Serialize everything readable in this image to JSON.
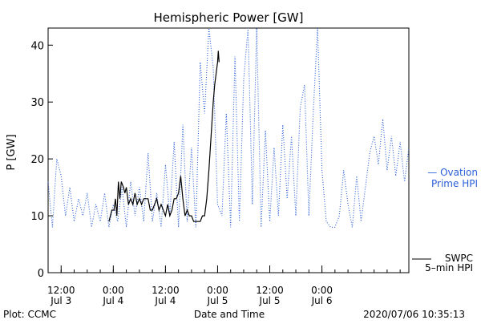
{
  "chart_data": {
    "type": "line",
    "title": "Hemispheric Power [GW]",
    "ylabel": "P [GW]",
    "xlabel": "Date and Time",
    "ylim": [
      0,
      43
    ],
    "xlim": [
      "2020-07-03T09:00",
      "2020-07-06T20:00"
    ],
    "y_ticks": [
      0,
      10,
      20,
      30,
      40
    ],
    "x_ticks": [
      {
        "time": "2020-07-03T12:00",
        "label_time": "12:00",
        "label_date": "Jul 3"
      },
      {
        "time": "2020-07-04T00:00",
        "label_time": "0:00",
        "label_date": "Jul 4"
      },
      {
        "time": "2020-07-04T12:00",
        "label_time": "12:00",
        "label_date": "Jul 4"
      },
      {
        "time": "2020-07-05T00:00",
        "label_time": "0:00",
        "label_date": "Jul 5"
      },
      {
        "time": "2020-07-05T12:00",
        "label_time": "12:00",
        "label_date": "Jul 5"
      },
      {
        "time": "2020-07-06T00:00",
        "label_time": "0:00",
        "label_date": "Jul 6"
      }
    ],
    "grid": false,
    "series": [
      {
        "name": "Ovation Prime HPI",
        "color": "#2b5fd9",
        "style": "dotted",
        "points": [
          [
            "2020-07-03T09:00",
            16
          ],
          [
            "2020-07-03T10:00",
            8
          ],
          [
            "2020-07-03T11:00",
            20
          ],
          [
            "2020-07-03T12:00",
            17
          ],
          [
            "2020-07-03T13:00",
            10
          ],
          [
            "2020-07-03T14:00",
            15
          ],
          [
            "2020-07-03T15:00",
            9
          ],
          [
            "2020-07-03T16:00",
            13
          ],
          [
            "2020-07-03T17:00",
            10
          ],
          [
            "2020-07-03T18:00",
            14
          ],
          [
            "2020-07-03T19:00",
            8
          ],
          [
            "2020-07-03T20:00",
            12
          ],
          [
            "2020-07-03T21:00",
            9
          ],
          [
            "2020-07-03T22:00",
            14
          ],
          [
            "2020-07-03T23:00",
            8
          ],
          [
            "2020-07-04T00:00",
            12
          ],
          [
            "2020-07-04T01:00",
            9
          ],
          [
            "2020-07-04T02:00",
            15
          ],
          [
            "2020-07-04T03:00",
            8
          ],
          [
            "2020-07-04T04:00",
            16
          ],
          [
            "2020-07-04T05:00",
            10
          ],
          [
            "2020-07-04T06:00",
            15
          ],
          [
            "2020-07-04T07:00",
            9
          ],
          [
            "2020-07-04T08:00",
            21
          ],
          [
            "2020-07-04T09:00",
            9
          ],
          [
            "2020-07-04T10:00",
            14
          ],
          [
            "2020-07-04T11:00",
            8
          ],
          [
            "2020-07-04T12:00",
            19
          ],
          [
            "2020-07-04T13:00",
            10
          ],
          [
            "2020-07-04T14:00",
            23
          ],
          [
            "2020-07-04T15:00",
            8
          ],
          [
            "2020-07-04T16:00",
            26
          ],
          [
            "2020-07-04T17:00",
            9
          ],
          [
            "2020-07-04T18:00",
            22
          ],
          [
            "2020-07-04T19:00",
            8
          ],
          [
            "2020-07-04T20:00",
            37
          ],
          [
            "2020-07-04T21:00",
            28
          ],
          [
            "2020-07-04T22:00",
            43
          ],
          [
            "2020-07-04T23:00",
            36
          ],
          [
            "2020-07-05T00:00",
            12
          ],
          [
            "2020-07-05T01:00",
            10
          ],
          [
            "2020-07-05T02:00",
            28
          ],
          [
            "2020-07-05T03:00",
            8
          ],
          [
            "2020-07-05T04:00",
            38
          ],
          [
            "2020-07-05T05:00",
            9
          ],
          [
            "2020-07-05T06:00",
            34
          ],
          [
            "2020-07-05T07:00",
            43
          ],
          [
            "2020-07-05T08:00",
            12
          ],
          [
            "2020-07-05T09:00",
            43
          ],
          [
            "2020-07-05T10:00",
            8
          ],
          [
            "2020-07-05T11:00",
            25
          ],
          [
            "2020-07-05T12:00",
            9
          ],
          [
            "2020-07-05T13:00",
            22
          ],
          [
            "2020-07-05T14:00",
            10
          ],
          [
            "2020-07-05T15:00",
            26
          ],
          [
            "2020-07-05T16:00",
            13
          ],
          [
            "2020-07-05T17:00",
            24
          ],
          [
            "2020-07-05T18:00",
            10
          ],
          [
            "2020-07-05T19:00",
            29
          ],
          [
            "2020-07-05T20:00",
            33
          ],
          [
            "2020-07-05T21:00",
            10
          ],
          [
            "2020-07-05T22:00",
            28
          ],
          [
            "2020-07-05T23:00",
            43
          ],
          [
            "2020-07-06T00:00",
            18
          ],
          [
            "2020-07-06T01:00",
            9
          ],
          [
            "2020-07-06T02:00",
            8
          ],
          [
            "2020-07-06T03:00",
            8
          ],
          [
            "2020-07-06T04:00",
            10
          ],
          [
            "2020-07-06T05:00",
            18
          ],
          [
            "2020-07-06T06:00",
            12
          ],
          [
            "2020-07-06T07:00",
            8
          ],
          [
            "2020-07-06T08:00",
            17
          ],
          [
            "2020-07-06T09:00",
            9
          ],
          [
            "2020-07-06T10:00",
            15
          ],
          [
            "2020-07-06T11:00",
            21
          ],
          [
            "2020-07-06T12:00",
            24
          ],
          [
            "2020-07-06T13:00",
            19
          ],
          [
            "2020-07-06T14:00",
            27
          ],
          [
            "2020-07-06T15:00",
            18
          ],
          [
            "2020-07-06T16:00",
            24
          ],
          [
            "2020-07-06T17:00",
            17
          ],
          [
            "2020-07-06T18:00",
            23
          ],
          [
            "2020-07-06T19:00",
            16
          ],
          [
            "2020-07-06T20:00",
            22
          ]
        ]
      },
      {
        "name": "SWPC 5-min HPI",
        "color": "#000000",
        "style": "solid",
        "points": [
          [
            "2020-07-03T23:00",
            9
          ],
          [
            "2020-07-03T23:40",
            11
          ],
          [
            "2020-07-04T00:10",
            11
          ],
          [
            "2020-07-04T00:30",
            13
          ],
          [
            "2020-07-04T00:50",
            10
          ],
          [
            "2020-07-04T01:10",
            16
          ],
          [
            "2020-07-04T01:30",
            13
          ],
          [
            "2020-07-04T01:50",
            16
          ],
          [
            "2020-07-04T02:20",
            15
          ],
          [
            "2020-07-04T02:40",
            14
          ],
          [
            "2020-07-04T03:00",
            15
          ],
          [
            "2020-07-04T03:30",
            12
          ],
          [
            "2020-07-04T04:00",
            13
          ],
          [
            "2020-07-04T04:30",
            12
          ],
          [
            "2020-07-04T05:00",
            14
          ],
          [
            "2020-07-04T05:30",
            12
          ],
          [
            "2020-07-04T06:00",
            13
          ],
          [
            "2020-07-04T06:30",
            12
          ],
          [
            "2020-07-04T07:00",
            13
          ],
          [
            "2020-07-04T07:30",
            13
          ],
          [
            "2020-07-04T08:00",
            13
          ],
          [
            "2020-07-04T08:30",
            11
          ],
          [
            "2020-07-04T09:00",
            11
          ],
          [
            "2020-07-04T09:30",
            12
          ],
          [
            "2020-07-04T10:00",
            13
          ],
          [
            "2020-07-04T10:30",
            11
          ],
          [
            "2020-07-04T11:00",
            12
          ],
          [
            "2020-07-04T11:30",
            11
          ],
          [
            "2020-07-04T12:00",
            10
          ],
          [
            "2020-07-04T12:30",
            12
          ],
          [
            "2020-07-04T13:00",
            10
          ],
          [
            "2020-07-04T13:30",
            11
          ],
          [
            "2020-07-04T14:00",
            13
          ],
          [
            "2020-07-04T14:30",
            13
          ],
          [
            "2020-07-04T15:00",
            14
          ],
          [
            "2020-07-04T15:30",
            17
          ],
          [
            "2020-07-04T16:00",
            13
          ],
          [
            "2020-07-04T16:30",
            10
          ],
          [
            "2020-07-04T17:00",
            11
          ],
          [
            "2020-07-04T17:30",
            10
          ],
          [
            "2020-07-04T18:00",
            10
          ],
          [
            "2020-07-04T18:30",
            9
          ],
          [
            "2020-07-04T19:00",
            9
          ],
          [
            "2020-07-04T19:30",
            9
          ],
          [
            "2020-07-04T20:00",
            9
          ],
          [
            "2020-07-04T20:30",
            10
          ],
          [
            "2020-07-04T21:00",
            10
          ],
          [
            "2020-07-04T21:30",
            13
          ],
          [
            "2020-07-04T22:00",
            18
          ],
          [
            "2020-07-04T22:30",
            24
          ],
          [
            "2020-07-04T23:00",
            30
          ],
          [
            "2020-07-04T23:20",
            33
          ],
          [
            "2020-07-04T23:40",
            35
          ],
          [
            "2020-07-05T00:00",
            37
          ],
          [
            "2020-07-05T00:10",
            39
          ],
          [
            "2020-07-05T00:20",
            37
          ]
        ]
      }
    ]
  },
  "legend": {
    "ovation_line1": "— Ovation",
    "ovation_line2": "Prime HPI",
    "swpc_line1": "SWPC",
    "swpc_line2": "5–min HPI"
  },
  "footer": {
    "plot_credit": "Plot: CCMC",
    "timestamp": "2020/07/06 10:35:13"
  }
}
